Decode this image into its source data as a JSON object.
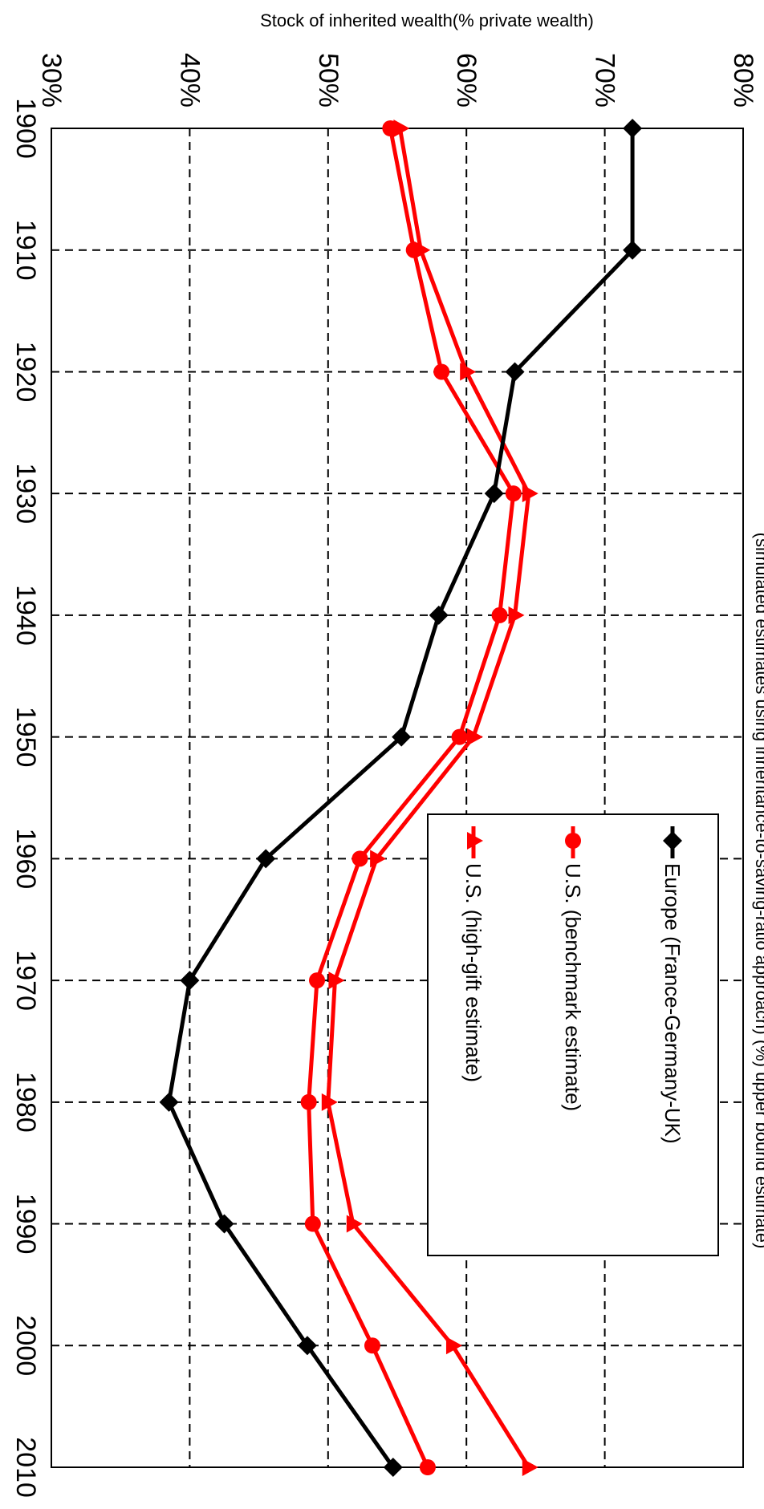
{
  "chart_data": {
    "type": "line",
    "title": "",
    "ylabel": "Stock of inherited wealth(% private wealth)",
    "clipped_top_text": "(simulated estimates using inheritance-to-saving-ratio approach) (%) upper bound estimate)",
    "x": [
      1900,
      1910,
      1920,
      1930,
      1940,
      1950,
      1960,
      1970,
      1980,
      1990,
      2000,
      2010
    ],
    "x_tick_labels": [
      "1900",
      "1910",
      "1920",
      "1930",
      "1940",
      "1950",
      "1960",
      "1970",
      "1980",
      "1990",
      "2000",
      "2010"
    ],
    "xlim": [
      1900,
      2010
    ],
    "ylim": [
      30,
      80
    ],
    "y_ticks": [
      30,
      40,
      50,
      60,
      70,
      80
    ],
    "y_tick_labels": [
      "30%",
      "40%",
      "50%",
      "60%",
      "70%",
      "80%"
    ],
    "grid": true,
    "legend_position": "right-middle",
    "series": [
      {
        "name": "Europe (France-Germany-UK)",
        "color": "#000000",
        "marker": "diamond",
        "values": [
          72,
          72,
          63.5,
          62,
          58,
          55.3,
          45.5,
          40,
          38.5,
          42.5,
          48.5,
          54.7
        ]
      },
      {
        "name": "U.S. (benchmark estimate)",
        "color": "#ff0000",
        "marker": "circle",
        "values": [
          54.5,
          56.2,
          58.2,
          63.4,
          62.4,
          59.5,
          52.3,
          49.2,
          48.6,
          48.9,
          53.2,
          57.2
        ]
      },
      {
        "name": "U.S. (high-gift estimate)",
        "color": "#ff0000",
        "marker": "triangle",
        "values": [
          55.2,
          56.7,
          60,
          64.5,
          63.5,
          60.5,
          53.5,
          50.5,
          50,
          51.8,
          59,
          64.5
        ]
      }
    ]
  }
}
